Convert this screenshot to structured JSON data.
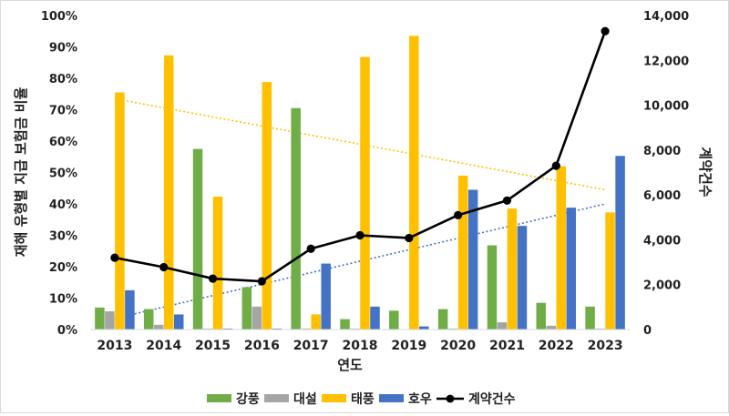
{
  "chart_data": {
    "type": "bar",
    "title": "",
    "xlabel": "연도",
    "ylabel_left": "재해 유형별 지급 보험금 비율",
    "ylabel_right": "계약건수",
    "categories": [
      "2013",
      "2014",
      "2015",
      "2016",
      "2017",
      "2018",
      "2019",
      "2020",
      "2021",
      "2022",
      "2023"
    ],
    "ylim_left": [
      0,
      100
    ],
    "yticks_left": [
      "0%",
      "10%",
      "20%",
      "30%",
      "40%",
      "50%",
      "60%",
      "70%",
      "80%",
      "90%",
      "100%"
    ],
    "ylim_right": [
      0,
      14000
    ],
    "yticks_right": [
      "0",
      "2,000",
      "4,000",
      "6,000",
      "8,000",
      "10,000",
      "12,000",
      "14,000"
    ],
    "grid": false,
    "legend_position": "bottom",
    "series": [
      {
        "name": "강풍",
        "type": "bar",
        "color": "#70ad47",
        "values": [
          7,
          6.5,
          57.5,
          13.5,
          70.5,
          3.3,
          6,
          6.5,
          26.8,
          8.5,
          7.3
        ]
      },
      {
        "name": "대설",
        "type": "bar",
        "color": "#a5a5a5",
        "values": [
          5.8,
          1.5,
          0.3,
          7.3,
          0.3,
          0.3,
          0,
          0.3,
          2.3,
          1.2,
          0.3
        ]
      },
      {
        "name": "태풍",
        "type": "bar",
        "color": "#ffc000",
        "values": [
          75.5,
          87.3,
          42.3,
          78.8,
          4.8,
          86.8,
          93.5,
          49,
          38.5,
          52,
          37.3
        ]
      },
      {
        "name": "호우",
        "type": "bar",
        "color": "#4472c4",
        "values": [
          12.5,
          4.8,
          0.3,
          0.3,
          21,
          7.3,
          1,
          44.5,
          33,
          38.8,
          55.3
        ]
      },
      {
        "name": "계약건수",
        "type": "line",
        "axis": "right",
        "color": "#000000",
        "values": [
          3200,
          2780,
          2270,
          2150,
          3600,
          4200,
          4080,
          5100,
          5750,
          7300,
          13300
        ]
      }
    ],
    "trendlines": [
      {
        "series": "태풍",
        "color": "#ffc000",
        "from": [
          0,
          73.5
        ],
        "to": [
          10,
          44.5
        ]
      },
      {
        "series": "호우",
        "color": "#4472c4",
        "from": [
          0,
          3.5
        ],
        "to": [
          10,
          40
        ]
      }
    ]
  }
}
